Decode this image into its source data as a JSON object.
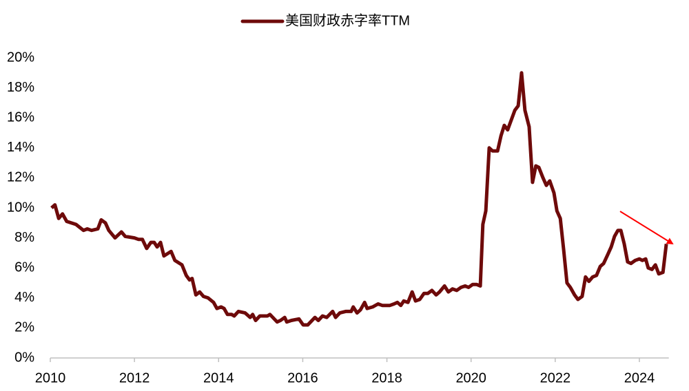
{
  "chart_data": {
    "type": "line",
    "series": [
      {
        "name": "美国财政赤字率TTM",
        "color": "#6e0a0a",
        "x": [
          2010.03,
          2010.11,
          2010.2,
          2010.29,
          2010.39,
          2010.61,
          2010.79,
          2010.88,
          2010.98,
          2011.13,
          2011.21,
          2011.31,
          2011.39,
          2011.54,
          2011.69,
          2011.78,
          2012.0,
          2012.1,
          2012.19,
          2012.29,
          2012.39,
          2012.47,
          2012.54,
          2012.62,
          2012.7,
          2012.87,
          2012.96,
          2013.13,
          2013.23,
          2013.31,
          2013.37,
          2013.46,
          2013.55,
          2013.64,
          2013.75,
          2013.88,
          2013.96,
          2014.06,
          2014.13,
          2014.21,
          2014.31,
          2014.37,
          2014.47,
          2014.63,
          2014.75,
          2014.81,
          2014.88,
          2014.98,
          2015.16,
          2015.22,
          2015.39,
          2015.47,
          2015.57,
          2015.62,
          2015.73,
          2015.91,
          2016.01,
          2016.12,
          2016.29,
          2016.37,
          2016.47,
          2016.57,
          2016.71,
          2016.78,
          2016.88,
          2017.02,
          2017.15,
          2017.2,
          2017.29,
          2017.37,
          2017.47,
          2017.53,
          2017.66,
          2017.79,
          2017.89,
          2018.07,
          2018.17,
          2018.25,
          2018.33,
          2018.4,
          2018.5,
          2018.6,
          2018.68,
          2018.78,
          2018.88,
          2018.97,
          2019.07,
          2019.17,
          2019.25,
          2019.37,
          2019.46,
          2019.56,
          2019.66,
          2019.76,
          2019.86,
          2019.94,
          2020.04,
          2020.13,
          2020.22,
          2020.28,
          2020.35,
          2020.43,
          2020.51,
          2020.63,
          2020.71,
          2020.79,
          2020.87,
          2021.04,
          2021.12,
          2021.2,
          2021.28,
          2021.38,
          2021.46,
          2021.54,
          2021.61,
          2021.71,
          2021.79,
          2021.87,
          2021.97,
          2022.04,
          2022.12,
          2022.2,
          2022.28,
          2022.36,
          2022.46,
          2022.54,
          2022.64,
          2022.72,
          2022.8,
          2022.89,
          2022.98,
          2023.07,
          2023.15,
          2023.25,
          2023.33,
          2023.41,
          2023.49,
          2023.56,
          2023.64,
          2023.72,
          2023.8,
          2023.9,
          2024.0,
          2024.07,
          2024.15,
          2024.21,
          2024.3,
          2024.38,
          2024.46,
          2024.56,
          2024.64
        ],
        "values": [
          10.0,
          10.2,
          9.3,
          9.6,
          9.1,
          8.9,
          8.5,
          8.6,
          8.5,
          8.6,
          9.2,
          9.0,
          8.5,
          8.0,
          8.4,
          8.1,
          8.0,
          7.9,
          7.9,
          7.3,
          7.7,
          7.7,
          7.4,
          7.7,
          6.8,
          7.1,
          6.5,
          6.2,
          5.5,
          5.2,
          5.3,
          4.2,
          4.4,
          4.1,
          4.0,
          3.7,
          3.3,
          3.4,
          3.3,
          2.9,
          2.9,
          2.8,
          3.1,
          3.0,
          2.7,
          2.9,
          2.5,
          2.8,
          2.8,
          2.9,
          2.4,
          2.5,
          2.7,
          2.4,
          2.5,
          2.6,
          2.2,
          2.2,
          2.7,
          2.5,
          2.8,
          2.7,
          3.1,
          2.7,
          3.0,
          3.1,
          3.1,
          3.4,
          3.0,
          3.2,
          3.7,
          3.3,
          3.4,
          3.6,
          3.5,
          3.5,
          3.6,
          3.7,
          3.5,
          3.8,
          3.7,
          4.4,
          3.8,
          3.9,
          4.3,
          4.3,
          4.5,
          4.2,
          4.4,
          4.8,
          4.4,
          4.6,
          4.5,
          4.7,
          4.8,
          4.7,
          4.9,
          4.9,
          4.8,
          8.9,
          9.8,
          14.0,
          13.8,
          13.8,
          14.8,
          15.5,
          15.2,
          16.5,
          16.8,
          19.0,
          16.5,
          15.4,
          11.7,
          12.8,
          12.7,
          12.0,
          11.5,
          11.8,
          11.0,
          9.8,
          9.3,
          7.2,
          5.0,
          4.7,
          4.2,
          3.9,
          4.1,
          5.4,
          5.1,
          5.4,
          5.5,
          6.1,
          6.3,
          6.9,
          7.4,
          8.1,
          8.5,
          8.5,
          7.6,
          6.4,
          6.3,
          6.5,
          6.6,
          6.5,
          6.6,
          6.0,
          5.9,
          6.2,
          5.6,
          5.7,
          7.6
        ]
      }
    ],
    "xlim": [
      2010,
      2024.7
    ],
    "xticks": [
      2010,
      2012,
      2014,
      2016,
      2018,
      2020,
      2022,
      2024
    ],
    "ylim": [
      0,
      20
    ],
    "yticks": [
      {
        "value": 0,
        "label": "0%"
      },
      {
        "value": 2,
        "label": "2%"
      },
      {
        "value": 4,
        "label": "4%"
      },
      {
        "value": 6,
        "label": "6%"
      },
      {
        "value": 8,
        "label": "8%"
      },
      {
        "value": 10,
        "label": "10%"
      },
      {
        "value": 12,
        "label": "12%"
      },
      {
        "value": 14,
        "label": "14%"
      },
      {
        "value": 16,
        "label": "16%"
      },
      {
        "value": 18,
        "label": "18%"
      },
      {
        "value": 20,
        "label": "20%"
      }
    ],
    "grid": false,
    "legend": "top"
  }
}
